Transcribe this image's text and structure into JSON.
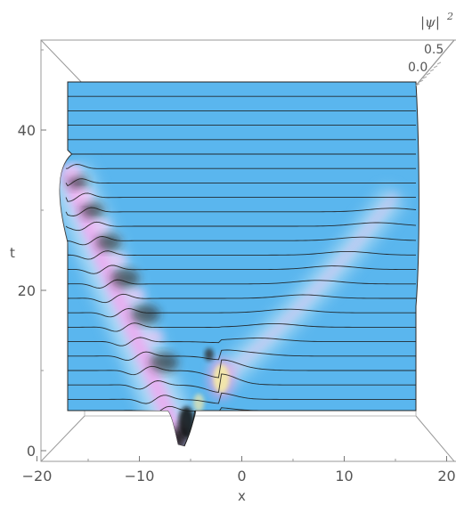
{
  "chart_data": {
    "type": "surface",
    "view": "top-down 3D surface plot (Mathematica style)",
    "xlabel": "x",
    "ylabel": "t",
    "zlabel_main": "|ψ|",
    "zlabel_exp": "2",
    "x_ticks": [
      "−20",
      "−10",
      "0",
      "10",
      "20"
    ],
    "x_tick_values": [
      -20,
      -10,
      0,
      10,
      20
    ],
    "t_ticks": [
      "0",
      "20",
      "40"
    ],
    "t_tick_values": [
      0,
      20,
      40
    ],
    "z_ticks": [
      "0.0",
      "0.5"
    ],
    "z_tick_values": [
      0.0,
      0.5
    ],
    "xlim": [
      -20,
      20
    ],
    "tlim": [
      0,
      50
    ],
    "data_x_range": [
      -17,
      17
    ],
    "data_t_range": [
      5,
      46
    ],
    "mesh_t_values": [
      46.0,
      44.2,
      42.4,
      40.6,
      38.8,
      37.0,
      35.2,
      33.4,
      31.6,
      29.8,
      28.0,
      26.2,
      24.4,
      22.6,
      20.8,
      19.0,
      17.2,
      15.4,
      13.6,
      11.8,
      10.0,
      8.2,
      6.4,
      5.0
    ],
    "features": [
      {
        "kind": "localized peak track",
        "x_start": -6,
        "t_start": 0.5,
        "x_end": -17,
        "t_end": 35
      },
      {
        "kind": "bright peak",
        "x": -2,
        "t": 9
      },
      {
        "kind": "dispersive wave track",
        "x_start": -2,
        "t_start": 9,
        "x_end": 15,
        "t_end": 32
      }
    ],
    "colors": {
      "surface_base": "#5ab6ee",
      "hump_pink": "#f0a8f0",
      "hump_light": "#c9e6f8",
      "peak_yellow": "#f4e9a8",
      "dark_trough": "#1a1a1a",
      "box_line": "#999999"
    }
  }
}
